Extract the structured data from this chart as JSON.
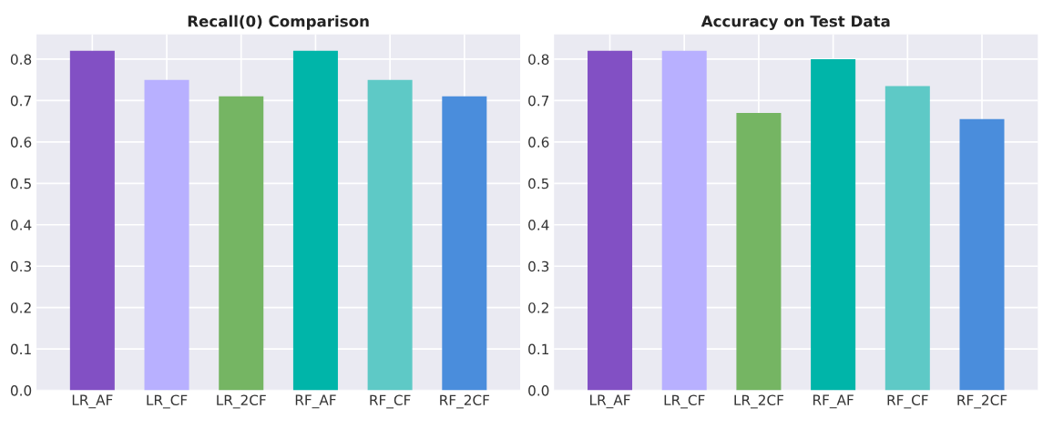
{
  "chart_data": [
    {
      "type": "bar",
      "title": "Recall(0) Comparison",
      "categories": [
        "LR_AF",
        "LR_CF",
        "LR_2CF",
        "RF_AF",
        "RF_CF",
        "RF_2CF"
      ],
      "values": [
        0.82,
        0.75,
        0.71,
        0.82,
        0.75,
        0.71
      ],
      "colors": [
        "#8250c4",
        "#b8b0ff",
        "#75b563",
        "#00b5a9",
        "#5ec9c6",
        "#4a8ddc"
      ],
      "ylim": [
        0,
        0.86
      ],
      "yticks": [
        {
          "value": 0,
          "label": "0.0"
        },
        0.1,
        0.2,
        0.3,
        0.4,
        0.5,
        0.6,
        0.7,
        0.8
      ],
      "grid": true
    },
    {
      "type": "bar",
      "title": "Accuracy on Test Data",
      "categories": [
        "LR_AF",
        "LR_CF",
        "LR_2CF",
        "RF_AF",
        "RF_CF",
        "RF_2CF"
      ],
      "values": [
        0.82,
        0.82,
        0.67,
        0.8,
        0.735,
        0.655
      ],
      "colors": [
        "#8250c4",
        "#b8b0ff",
        "#75b563",
        "#00b5a9",
        "#5ec9c6",
        "#4a8ddc"
      ],
      "ylim": [
        0,
        0.86
      ],
      "yticks": [
        {
          "value": 0,
          "label": "0.0"
        },
        0.1,
        0.2,
        0.3,
        0.4,
        0.5,
        0.6,
        0.7,
        0.8
      ],
      "grid": true
    }
  ]
}
